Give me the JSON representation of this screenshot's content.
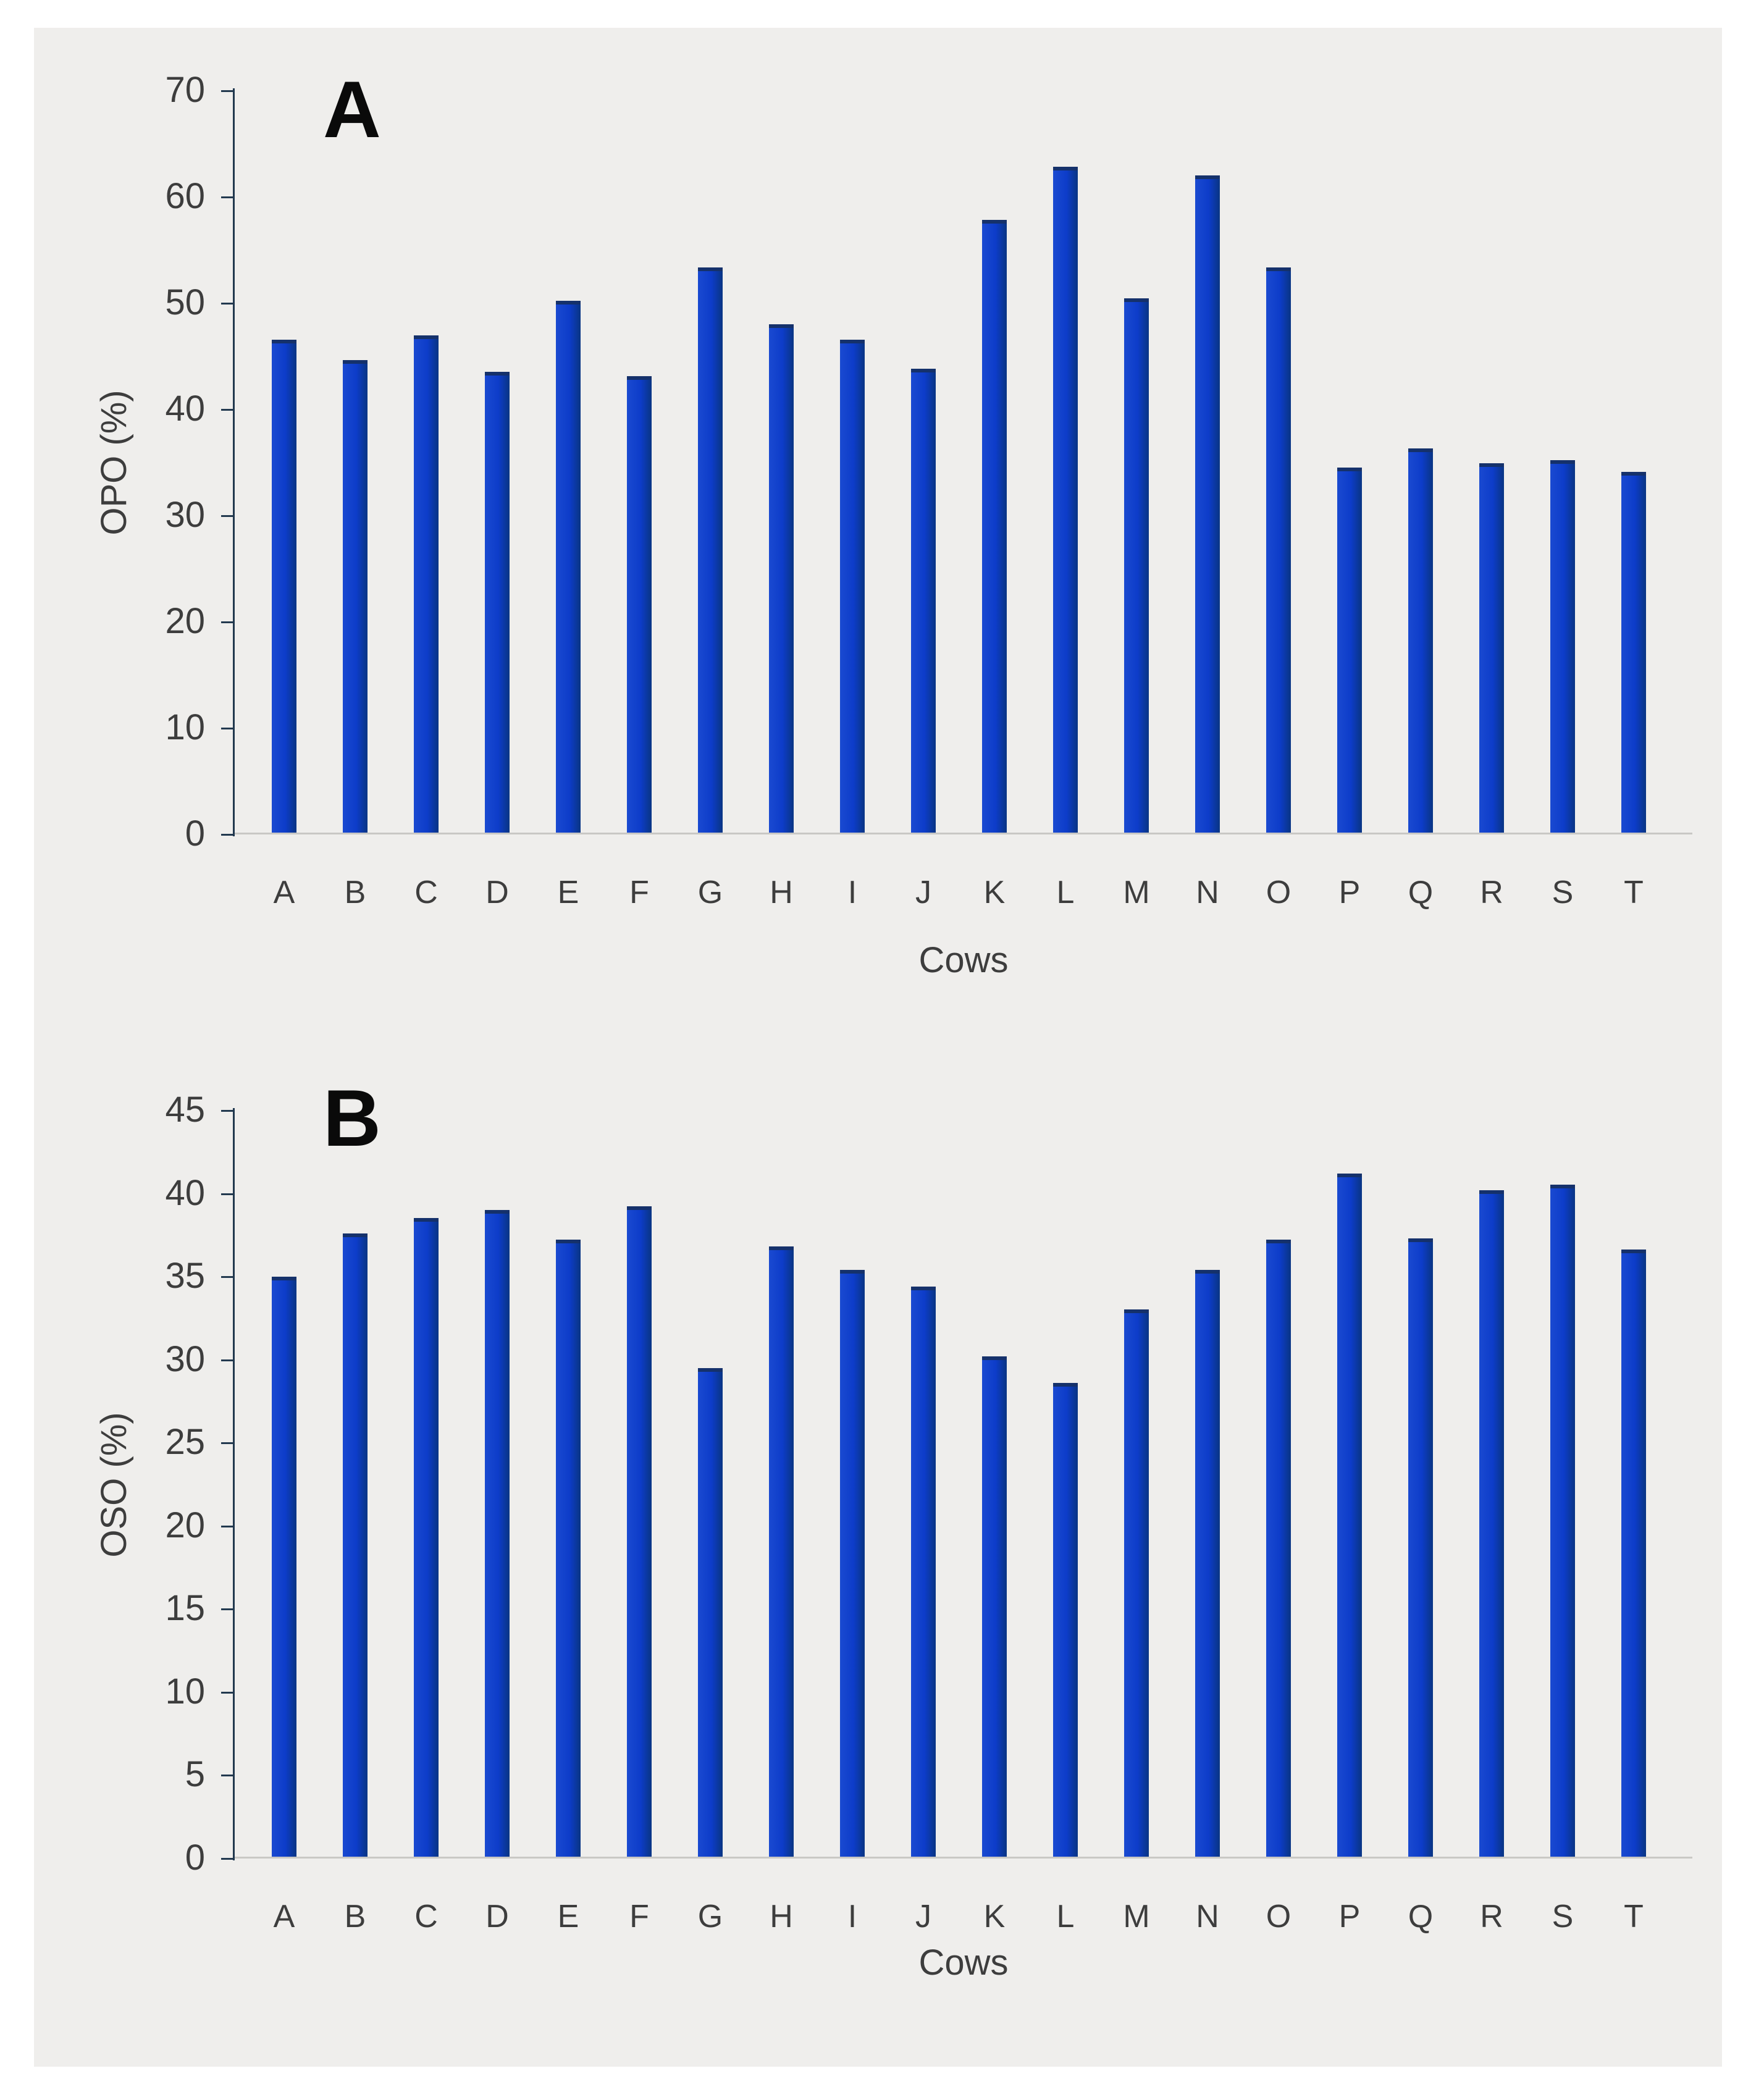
{
  "figure": {
    "background_color": "#ffffff",
    "panel_background_color": "#efeeec"
  },
  "colors": {
    "bar_body": "#0d3cc9",
    "bar_left_edge": "#1a4ad1",
    "bar_right_edge": "#093583",
    "bar_top_cap": "#15316b",
    "axis_line": "#22394f",
    "baseline": "#c9c8c5",
    "text": "#3d3d3d",
    "panel_title": "#0a0a0a"
  },
  "chart_data": [
    {
      "panel_label": "A",
      "type": "bar",
      "title": "A",
      "ylabel": "OPO (%)",
      "xlabel": "Cows",
      "ylim": [
        0,
        70
      ],
      "yticks": [
        0,
        10,
        20,
        30,
        40,
        50,
        60,
        70
      ],
      "grid": false,
      "categories": [
        "A",
        "B",
        "C",
        "D",
        "E",
        "F",
        "G",
        "H",
        "I",
        "J",
        "K",
        "L",
        "M",
        "N",
        "O",
        "P",
        "Q",
        "R",
        "S",
        "T"
      ],
      "values": [
        46.2,
        44.3,
        46.6,
        43.2,
        49.9,
        42.8,
        53.0,
        47.7,
        46.2,
        43.5,
        57.5,
        62.5,
        50.1,
        61.7,
        53.0,
        34.2,
        36.0,
        34.6,
        34.9,
        33.8
      ]
    },
    {
      "panel_label": "B",
      "type": "bar",
      "title": "B",
      "ylabel": "OSO (%)",
      "xlabel": "Cows",
      "ylim": [
        0,
        45
      ],
      "yticks": [
        0,
        5,
        10,
        15,
        20,
        25,
        30,
        35,
        40,
        45
      ],
      "grid": false,
      "categories": [
        "A",
        "B",
        "C",
        "D",
        "E",
        "F",
        "G",
        "H",
        "I",
        "J",
        "K",
        "L",
        "M",
        "N",
        "O",
        "P",
        "Q",
        "R",
        "S",
        "T"
      ],
      "values": [
        34.8,
        37.4,
        38.3,
        38.8,
        37.0,
        39.0,
        29.3,
        36.6,
        35.2,
        34.2,
        30.0,
        28.4,
        32.8,
        35.2,
        37.0,
        41.0,
        37.1,
        40.0,
        40.3,
        36.4
      ]
    }
  ]
}
